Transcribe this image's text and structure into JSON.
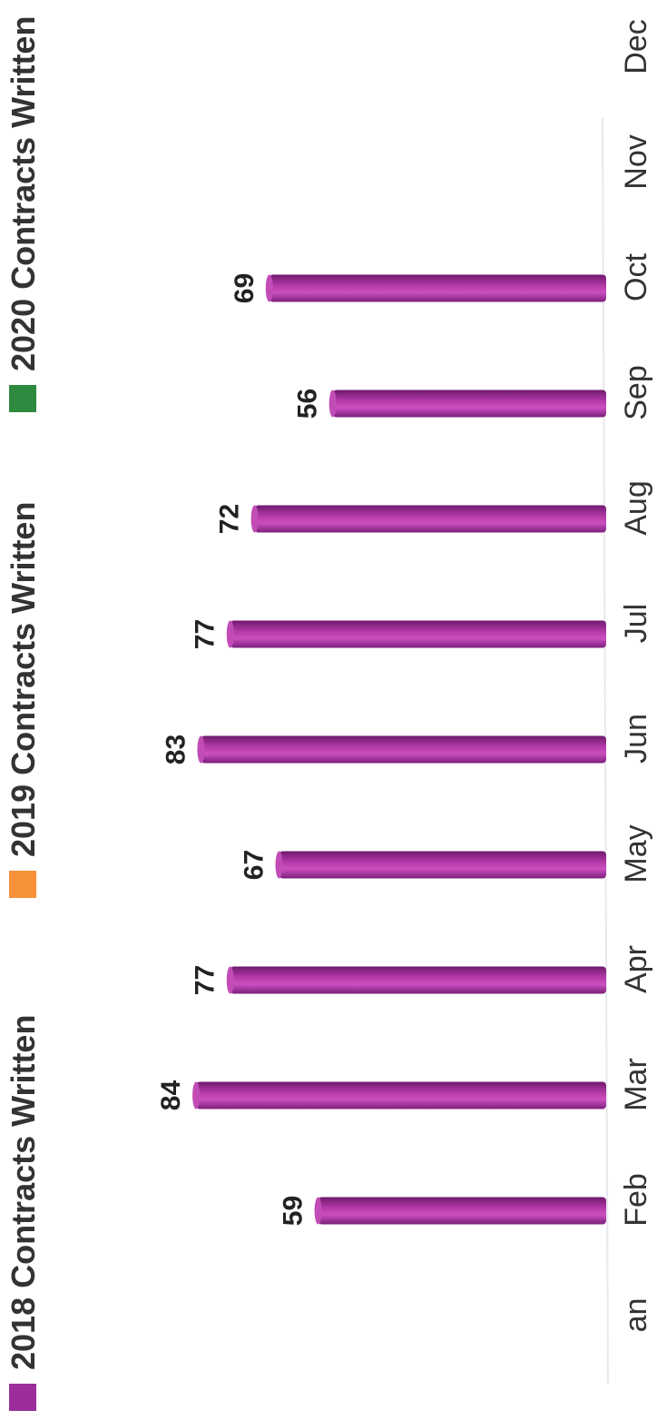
{
  "chart_data": {
    "type": "bar",
    "orientation": "vertical columns, page rotated 90° counter-clockwise",
    "categories": [
      "Jan",
      "Feb",
      "Mar",
      "Apr",
      "May",
      "Jun",
      "Jul",
      "Aug",
      "Sep",
      "Oct",
      "Nov",
      "Dec"
    ],
    "category_labels_visible": [
      "an",
      "Feb",
      "Mar",
      "Apr",
      "May",
      "Jun",
      "Jul",
      "Aug",
      "Sep",
      "Oct",
      "Nov",
      "Dec"
    ],
    "series": [
      {
        "name": "2018 Contracts Written",
        "color": "#9b2e9b",
        "values": [
          null,
          59,
          84,
          77,
          67,
          83,
          77,
          72,
          56,
          69,
          null,
          null
        ]
      },
      {
        "name": "2019 Contracts Written",
        "color": "#f7923a",
        "values": [
          null,
          null,
          null,
          null,
          null,
          null,
          null,
          null,
          null,
          null,
          null,
          null
        ]
      },
      {
        "name": "2020 Contracts Written",
        "color": "#2e8a3e",
        "values": [
          null,
          null,
          null,
          null,
          null,
          null,
          null,
          null,
          null,
          null,
          null,
          null
        ]
      }
    ],
    "legend_position": "top",
    "grid": false,
    "ylim": [
      0,
      100
    ],
    "title": "",
    "xlabel": "",
    "ylabel": ""
  }
}
